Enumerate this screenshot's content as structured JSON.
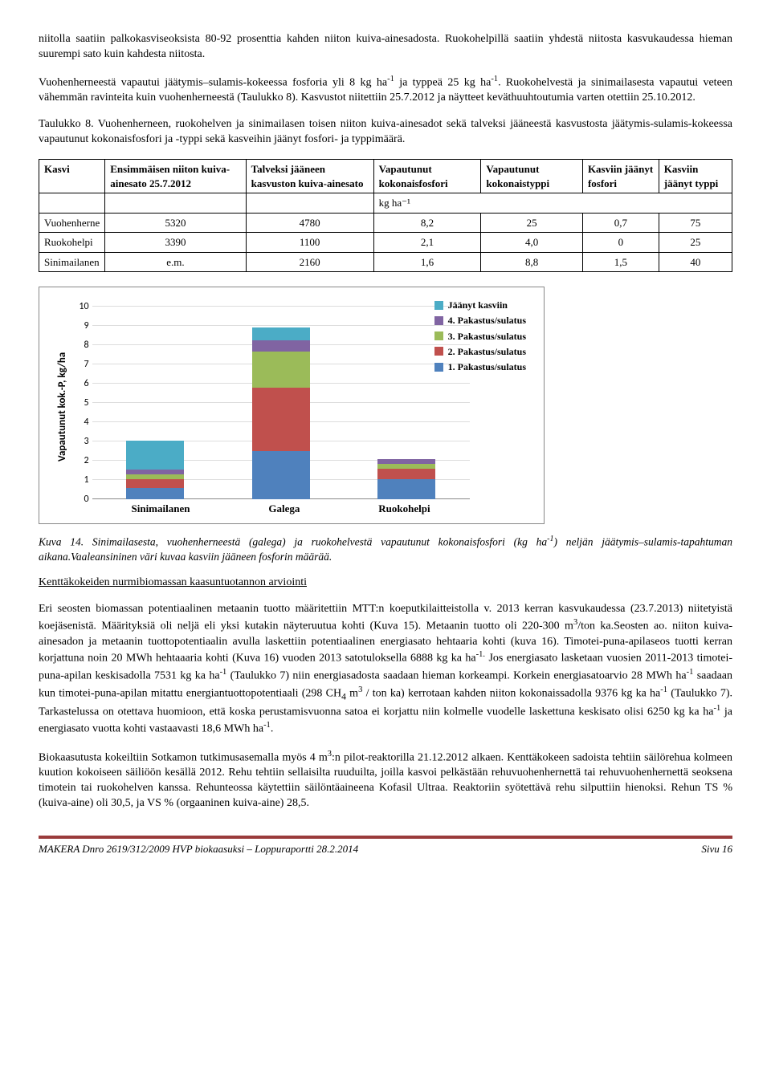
{
  "para1": "niitolla saatiin palkokasviseoksista 80-92 prosenttia kahden niiton kuiva-ainesadosta. Ruokohelpillä saatiin yhdestä niitosta kasvukaudessa hieman  suurempi sato kuin kahdesta niitosta.",
  "para2_a": "Vuohenherneestä vapautui jäätymis–sulamis-kokeessa fosforia yli 8 kg ha",
  "para2_b": " ja typpeä 25 kg ha",
  "para2_c": ". Ruokohelvestä ja sinimailasesta vapautui veteen  vähemmän ravinteita kuin vuohenherneestä (Taulukko 8). Kasvustot niitettiin 25.7.2012 ja näytteet keväthuuhtoutumia varten otettiin 25.10.2012.",
  "tablecaption": "Taulukko 8. Vuohenherneen, ruokohelven ja sinimailasen toisen niiton kuiva-ainesadot sekä  talveksi jääneestä kasvustosta jäätymis-sulamis-kokeessa vapautunut kokonaisfosfori ja -typpi sekä kasveihin jäänyt fosfori- ja typpimäärä.",
  "table": {
    "headers": [
      "Kasvi",
      "Ensimmäisen niiton kuiva-ainesato 25.7.2012",
      "Talveksi jääneen kasvuston kuiva-ainesato",
      "Vapautunut kokonaisfosfori",
      "Vapautunut kokonaistyppi",
      "Kasviin jäänyt fosfori",
      "Kasviin jäänyt typpi"
    ],
    "unit": "kg ha⁻¹",
    "rows": [
      [
        "Vuohenherne",
        "5320",
        "4780",
        "8,2",
        "25",
        "0,7",
        "75"
      ],
      [
        "Ruokohelpi",
        "3390",
        "1100",
        "2,1",
        "4,0",
        "0",
        "25"
      ],
      [
        "Sinimailanen",
        "e.m.",
        "2160",
        "1,6",
        "8,8",
        "1,5",
        "40"
      ]
    ]
  },
  "chart": {
    "ylabel": "Vapautunut kok.-P, kg/ha",
    "ymax": 10,
    "ytick_step": 1,
    "categories": [
      "Sinimailanen",
      "Galega",
      "Ruokohelpi"
    ],
    "series": [
      {
        "name": "1. Pakastus/sulatus",
        "color": "#4f81bd"
      },
      {
        "name": "2. Pakastus/sulatus",
        "color": "#c0504d"
      },
      {
        "name": "3. Pakastus/sulatus",
        "color": "#9bbb59"
      },
      {
        "name": "4. Pakastus/sulatus",
        "color": "#8064a2"
      },
      {
        "name": "Jäänyt kasviin",
        "color": "#4bacc6"
      }
    ],
    "stacks": [
      [
        0.6,
        0.45,
        0.25,
        0.25,
        1.5
      ],
      [
        2.5,
        3.3,
        1.9,
        0.55,
        0.7
      ],
      [
        1.05,
        0.55,
        0.25,
        0.25,
        0.0
      ]
    ],
    "grid_color": "#dddddd",
    "axis_color": "#888888"
  },
  "figcaption_a": "Kuva 14. Sinimailasesta, vuohenherneestä (galega) ja ruokohelvestä vapautunut kokonaisfosfori  (kg ha",
  "figcaption_b": ") neljän jäätymis–sulamis-tapahtuman aikana.Vaaleansininen väri kuvaa kasviin jääneen fosforin määrää.",
  "subheading": "Kenttäkokeiden nurmibiomassan kaasuntuotannon arviointi",
  "para3_a": "Eri seosten biomassan potentiaalinen metaanin tuotto määritettiin MTT:n koeputkilaitteistolla v. 2013 kerran kasvukaudessa (23.7.2013) niitetyistä koejäsenistä. Määrityksiä oli neljä eli yksi kutakin näyteruutua kohti (Kuva 15). Metaanin tuotto oli 220-300 m",
  "para3_b": "/ton ka.Seosten ao. niiton kuiva-ainesadon ja metaanin tuottopotentiaalin avulla laskettiin potentiaalinen energiasato hehtaaria kohti (kuva 16). Timotei-puna-apilaseos  tuotti kerran korjattuna noin  20 MWh hehtaaaria kohti (Kuva 16) vuoden 2013 satotuloksella 6888 kg ka ha",
  "para3_c": " Jos energiasato lasketaan vuosien 2011-2013 timotei-puna-apilan keskisadolla 7531 kg ka ha",
  "para3_d": " (Taulukko 7) niin energiasadosta saadaan hieman korkeampi. Korkein energiasatoarvio 28 MWh ha",
  "para3_e": " saadaan kun timotei-puna-apilan mitattu energiantuottopotentiaali  (298 CH",
  "para3_f": " m",
  "para3_g": " / ton ka) kerrotaan kahden niiton kokonaissadolla  9376 kg ka ha",
  "para3_h": " (Taulukko 7). Tarkastelussa on otettava huomioon, että koska perustamisvuonna satoa ei korjattu niin kolmelle vuodelle laskettuna keskisato olisi 6250 kg ka ha",
  "para3_i": " ja energiasato vuotta kohti vastaavasti 18,6 MWh ha",
  "para3_j": ".",
  "para4_a": "Biokaasutusta kokeiltiin Sotkamon tutkimusasemalla myös 4 m",
  "para4_b": ":n pilot-reaktorilla 21.12.2012 alkaen. Kenttäkokeen sadoista tehtiin säilörehua kolmeen kuution kokoiseen säiliöön kesällä 2012. Rehu tehtiin sellaisilta ruuduilta, joilla kasvoi pelkästään rehuvuohenhernettä tai rehuvuohenhernettä seoksena timotein tai ruokohelven kanssa. Rehunteossa käytettiin säilöntäaineena Kofasil Ultraa. Reaktoriin syötettävä rehu silputtiin hienoksi. Rehun TS % (kuiva-aine) oli 30,5, ja VS % (orgaaninen kuiva-aine) 28,5.",
  "footer_left": "MAKERA Dnro 2619/312/2009 HVP biokaasuksi – Loppuraportti 28.2.2014",
  "footer_right_label": "Sivu ",
  "footer_right_page": "16"
}
